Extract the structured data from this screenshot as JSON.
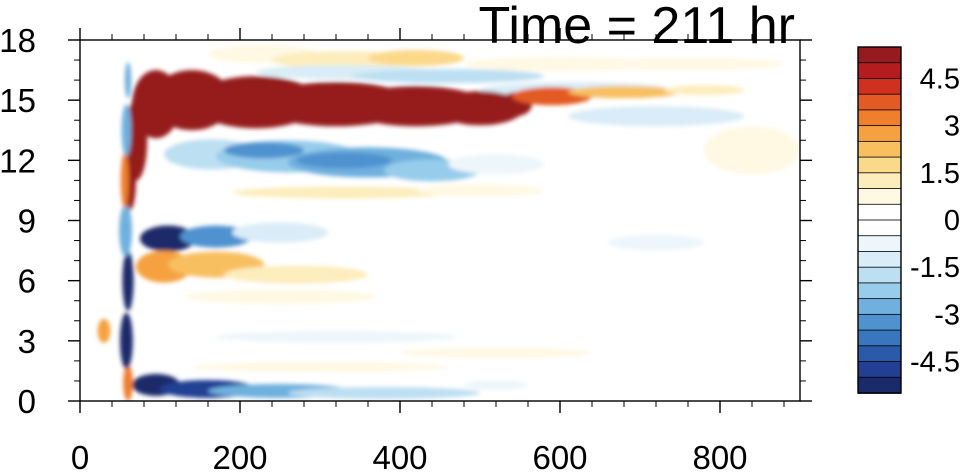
{
  "chart_data": {
    "type": "heatmap",
    "title": "Time = 211 hr",
    "xlabel": "",
    "ylabel": "",
    "xlim": [
      0,
      900
    ],
    "ylim": [
      0,
      18
    ],
    "x_ticks": [
      0,
      200,
      400,
      600,
      800
    ],
    "x_tick_labels": [
      "0",
      "200",
      "400",
      "600",
      "800"
    ],
    "y_ticks": [
      0,
      3,
      6,
      9,
      12,
      15,
      18
    ],
    "y_tick_labels": [
      "0",
      "3",
      "6",
      "9",
      "12",
      "15",
      "18"
    ],
    "colorbar": {
      "levels": [
        -5.5,
        -5,
        -4.5,
        -4,
        -3.5,
        -3,
        -2.5,
        -2,
        -1.5,
        -1,
        -0.5,
        0,
        0.5,
        1,
        1.5,
        2,
        2.5,
        3,
        3.5,
        4,
        4.5,
        5,
        5.5
      ],
      "colors": [
        "#1b2a6b",
        "#233f94",
        "#2c5aab",
        "#3a75bf",
        "#4f92d0",
        "#6fb0de",
        "#97cceb",
        "#bddff2",
        "#d9ecf7",
        "#edf6fb",
        "#ffffff",
        "#ffffff",
        "#fff8e3",
        "#fdedbd",
        "#fbd98b",
        "#f8bf60",
        "#f5a13f",
        "#ef7e2d",
        "#e35a24",
        "#d03020",
        "#b51c1f",
        "#961b1e"
      ],
      "tick_values": [
        4.5,
        3,
        1.5,
        0,
        -1.5,
        -3,
        -4.5
      ],
      "tick_labels": [
        "4.5",
        "3",
        "1.5",
        "0",
        "-1.5",
        "-3",
        "-4.5"
      ]
    },
    "features": [
      {
        "name": "strong positive band",
        "x_range": [
          70,
          555
        ],
        "y_center": 15,
        "value": 5.5
      },
      {
        "name": "negative band",
        "x_range": [
          140,
          470
        ],
        "y_center": 12,
        "value": -2.5
      },
      {
        "name": "positive band upper",
        "x_range": [
          200,
          430
        ],
        "y_center": 17.0,
        "value": 1.5
      },
      {
        "name": "negative band upper",
        "x_range": [
          280,
          760
        ],
        "y_center": 16.3,
        "value": -1.5
      },
      {
        "name": "negative spot",
        "x_range": [
          75,
          210
        ],
        "y_center": 8.0,
        "value": -5.0
      },
      {
        "name": "positive spot",
        "x_range": [
          75,
          260
        ],
        "y_center": 6.7,
        "value": 2.5
      },
      {
        "name": "surface negative band",
        "x_range": [
          60,
          520
        ],
        "y_center": 0.5,
        "value": -5.0
      },
      {
        "name": "vertical tilted dipole",
        "x_range": [
          30,
          75
        ],
        "y_center": 8,
        "value": -5.0
      }
    ]
  }
}
